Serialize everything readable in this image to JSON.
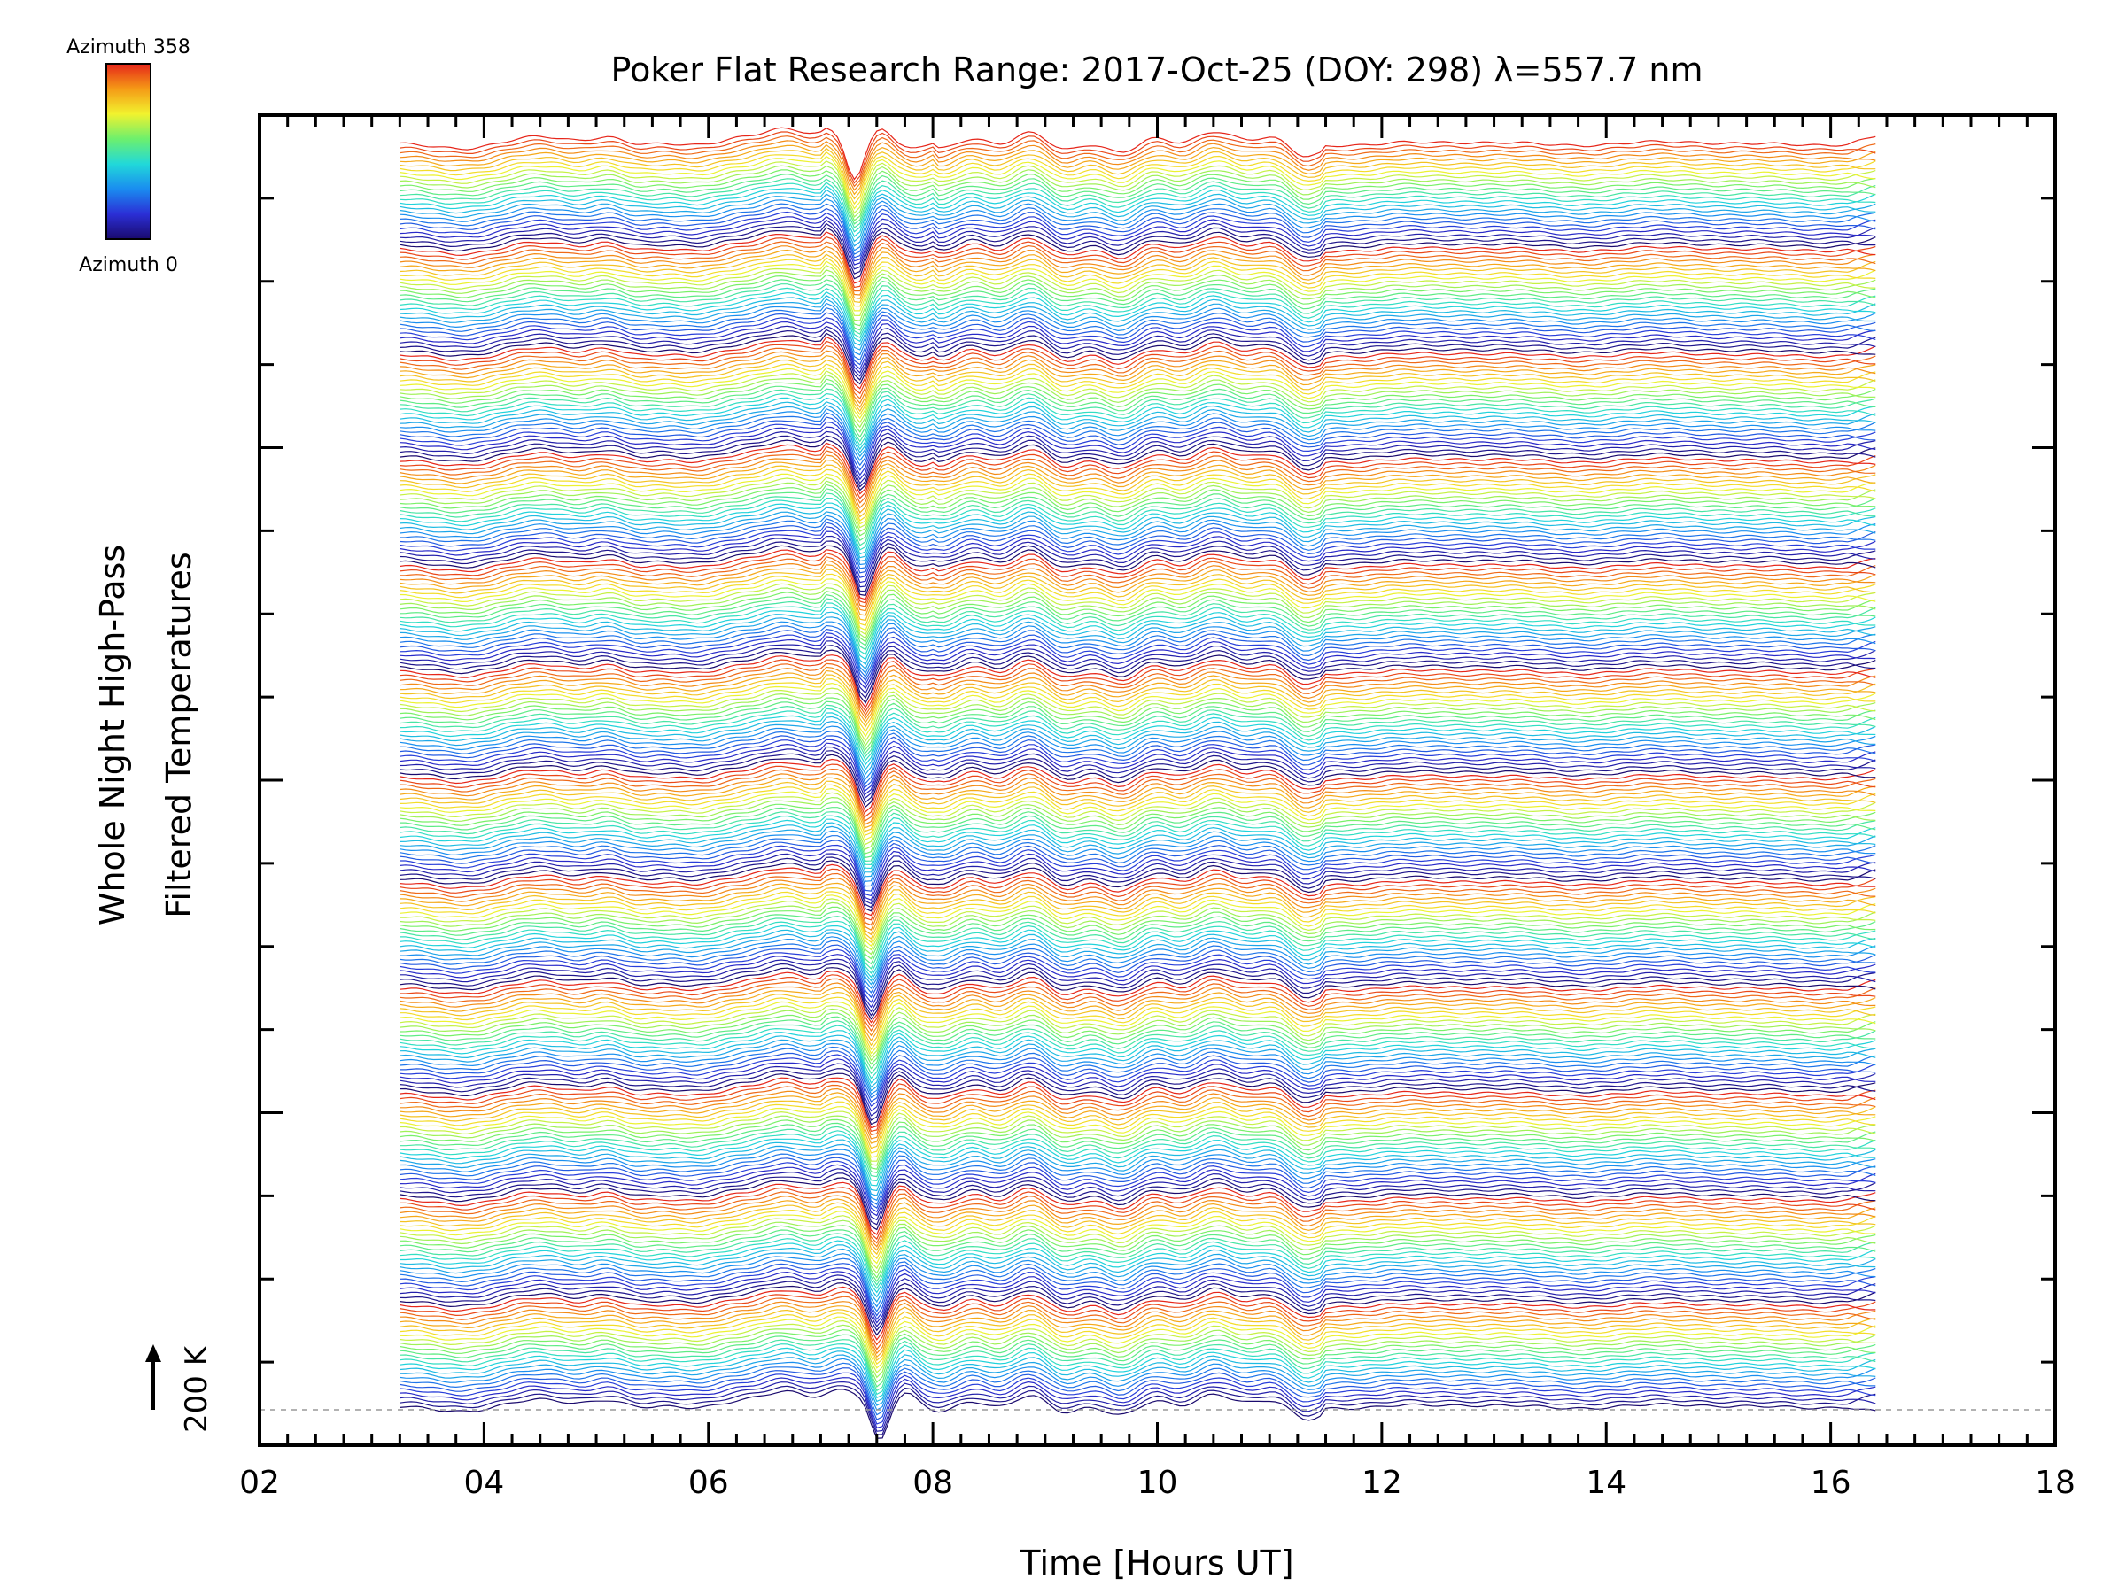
{
  "chart_data": {
    "type": "line",
    "title": "Poker Flat Research Range: 2017-Oct-25 (DOY: 298) λ=557.7 nm",
    "xlabel": "Time [Hours UT]",
    "ylabel_line1": "Whole Night High-Pass",
    "ylabel_line2": "Filtered Temperatures",
    "xlim": [
      2,
      18
    ],
    "x_ticks": [
      "02",
      "04",
      "06",
      "08",
      "10",
      "12",
      "14",
      "16",
      "18"
    ],
    "x_tick_values": [
      2,
      4,
      6,
      8,
      10,
      12,
      14,
      16,
      18
    ],
    "x_minor_step": 0.25,
    "scale_label": "200 K",
    "colorbar": {
      "top_label": "Azimuth 358",
      "bottom_label": "Azimuth 0",
      "colormap": [
        "#1a0a6e",
        "#2b2fd6",
        "#1a8cf0",
        "#21d9d9",
        "#6df06d",
        "#f2f22e",
        "#f59a16",
        "#e6261a"
      ]
    },
    "series_summary": {
      "time_start_hours": 3.25,
      "time_end_hours": 16.4,
      "traces": 300,
      "azimuth_range_deg": [
        0,
        358
      ],
      "palette_cycles": 12
    },
    "grid": false,
    "legend": "colorbar top-left"
  }
}
